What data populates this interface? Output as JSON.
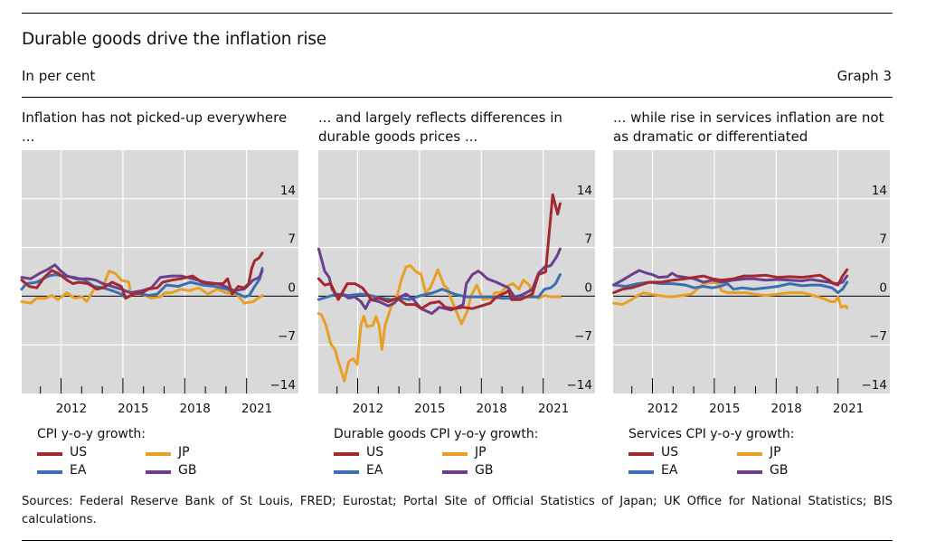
{
  "header": {
    "title": "Durable goods drive the inflation rise",
    "unit": "In per cent",
    "graph_number": "Graph 3"
  },
  "colors": {
    "US": "#a4282e",
    "EA": "#3b6fb1",
    "JP": "#e8a024",
    "GB": "#6c3e8e",
    "plot_bg": "#d9d9d9",
    "grid": "#ffffff"
  },
  "sources": "Sources: Federal Reserve Bank of St Louis, FRED; Eurostat; Portal Site of Official Statistics of Japan; UK Office for National Statistics; BIS calculations.",
  "chart_data": [
    {
      "type": "line",
      "title": "Inflation has not picked-up everywhere ...",
      "xlabel": "",
      "ylabel": "In per cent",
      "xlim": [
        2010.1,
        2023.5
      ],
      "ylim": [
        -14,
        21
      ],
      "yticks": [
        -14,
        -7,
        0,
        7,
        14
      ],
      "ytick_labels": [
        "−14",
        "−7",
        "0",
        "7",
        "14"
      ],
      "xticks_major": [
        2012,
        2015,
        2018,
        2021
      ],
      "xticks_minor": [
        2011,
        2013,
        2014,
        2016,
        2017,
        2019,
        2020
      ],
      "xtick_labels": [
        "2012",
        "2015",
        "2018",
        "2021"
      ],
      "grid": true,
      "legend_title": "CPI y-o-y growth:",
      "legend": [
        "US",
        "JP",
        "EA",
        "GB"
      ],
      "legend_position": "bottom",
      "series": [
        {
          "name": "US",
          "x": [
            2010.09,
            2010.46,
            2010.82,
            2011.19,
            2011.55,
            2011.85,
            2012.29,
            2012.58,
            2012.87,
            2013.31,
            2013.75,
            2014.04,
            2014.48,
            2014.92,
            2015.14,
            2015.5,
            2015.94,
            2016.23,
            2016.67,
            2016.93,
            2017.37,
            2017.81,
            2018.39,
            2018.83,
            2019.27,
            2019.86,
            2020.08,
            2020.3,
            2020.59,
            2020.88,
            2021.1,
            2021.25,
            2021.39,
            2021.61,
            2021.76
          ],
          "y": [
            2.3,
            1.4,
            1.2,
            2.7,
            3.7,
            3.3,
            2.3,
            1.8,
            2.0,
            1.8,
            1.0,
            1.2,
            2.0,
            1.4,
            -0.3,
            0.3,
            0.5,
            1.0,
            1.2,
            2.0,
            2.3,
            2.5,
            2.9,
            2.0,
            1.8,
            1.8,
            2.5,
            0.3,
            1.4,
            1.2,
            1.8,
            4.0,
            5.1,
            5.5,
            6.2
          ]
        },
        {
          "name": "EA",
          "x": [
            2010.09,
            2010.32,
            2010.82,
            2011.4,
            2011.7,
            2012.14,
            2012.65,
            2013.16,
            2013.6,
            2014.04,
            2014.48,
            2014.92,
            2015.14,
            2015.65,
            2016.23,
            2016.67,
            2017.04,
            2017.1,
            2017.68,
            2018.27,
            2018.86,
            2019.45,
            2020.03,
            2020.47,
            2020.91,
            2021.13,
            2021.35,
            2021.64,
            2021.76
          ],
          "y": [
            1.0,
            1.8,
            2.0,
            2.9,
            3.1,
            2.9,
            2.7,
            2.3,
            1.4,
            1.2,
            0.8,
            0.3,
            -0.3,
            0.5,
            0.1,
            0.3,
            1.4,
            1.6,
            1.4,
            2.0,
            1.6,
            1.4,
            1.0,
            0.5,
            -0.1,
            0.1,
            1.2,
            2.5,
            4.0
          ]
        },
        {
          "name": "JP",
          "x": [
            2010.09,
            2010.53,
            2010.82,
            2011.26,
            2011.55,
            2011.85,
            2012.29,
            2012.65,
            2013.02,
            2013.24,
            2013.6,
            2014.04,
            2014.33,
            2014.62,
            2014.92,
            2015.29,
            2015.36,
            2015.94,
            2016.38,
            2016.82,
            2017.04,
            2017.37,
            2017.81,
            2018.24,
            2018.68,
            2019.13,
            2019.56,
            2020.0,
            2020.52,
            2020.88,
            2021.32,
            2021.54,
            2021.76
          ],
          "y": [
            -0.8,
            -1.0,
            -0.3,
            -0.3,
            0.1,
            -0.5,
            0.5,
            -0.3,
            -0.1,
            -0.8,
            1.0,
            1.4,
            3.6,
            3.3,
            2.3,
            2.0,
            0.5,
            0.3,
            -0.3,
            -0.1,
            0.5,
            0.5,
            1.0,
            0.8,
            1.2,
            0.3,
            1.0,
            0.5,
            0.3,
            -1.0,
            -0.8,
            -0.3,
            0.1
          ]
        },
        {
          "name": "GB",
          "x": [
            2010.09,
            2010.53,
            2010.98,
            2011.33,
            2011.7,
            2011.99,
            2012.29,
            2012.73,
            2013.31,
            2013.68,
            2014.04,
            2014.48,
            2014.92,
            2015.36,
            2015.94,
            2016.38,
            2016.82,
            2017.37,
            2017.81,
            2018.39,
            2018.98,
            2019.57,
            2019.96,
            2020.4,
            2020.88,
            2021.32,
            2021.61,
            2021.76
          ],
          "y": [
            2.7,
            2.5,
            3.3,
            3.8,
            4.5,
            3.6,
            2.9,
            2.5,
            2.5,
            2.3,
            1.8,
            1.4,
            1.0,
            0.5,
            0.8,
            1.2,
            2.7,
            2.9,
            2.9,
            2.5,
            2.0,
            1.8,
            1.4,
            0.8,
            1.0,
            2.3,
            2.7,
            3.6
          ]
        }
      ]
    },
    {
      "type": "line",
      "title": "... and largely reflects differences in durable goods prices ...",
      "xlabel": "",
      "ylabel": "In per cent",
      "xlim": [
        2010.1,
        2023.5
      ],
      "ylim": [
        -14,
        21
      ],
      "yticks": [
        -14,
        -7,
        0,
        7,
        14
      ],
      "ytick_labels": [
        "−14",
        "−7",
        "0",
        "7",
        "14"
      ],
      "xticks_major": [
        2012,
        2015,
        2018,
        2021
      ],
      "xticks_minor": [
        2011,
        2013,
        2014,
        2016,
        2017,
        2019,
        2020
      ],
      "xtick_labels": [
        "2012",
        "2015",
        "2018",
        "2021"
      ],
      "grid": true,
      "legend_title": "Durable goods CPI y-o-y growth:",
      "legend": [
        "US",
        "JP",
        "EA",
        "GB"
      ],
      "legend_position": "bottom",
      "series": [
        {
          "name": "US",
          "x": [
            2010.11,
            2010.4,
            2010.69,
            2011.06,
            2011.5,
            2011.87,
            2012.23,
            2012.67,
            2013.04,
            2013.48,
            2013.92,
            2014.35,
            2014.79,
            2015.08,
            2015.52,
            2015.96,
            2016.25,
            2016.69,
            2017.12,
            2017.56,
            2018.0,
            2018.44,
            2018.73,
            2019.17,
            2019.32,
            2019.46,
            2019.9,
            2020.48,
            2020.77,
            2021.12,
            2021.46,
            2021.7,
            2021.82
          ],
          "y": [
            2.5,
            1.6,
            1.8,
            -0.5,
            1.8,
            1.8,
            1.2,
            -0.5,
            -0.3,
            -0.8,
            -0.3,
            -1.2,
            -1.2,
            -1.8,
            -1.0,
            -0.8,
            -1.6,
            -1.8,
            -1.6,
            -1.8,
            -1.4,
            -1.0,
            -0.1,
            0.5,
            0.8,
            -0.5,
            -0.5,
            0.3,
            3.1,
            3.5,
            14.6,
            11.8,
            13.3
          ]
        },
        {
          "name": "EA",
          "x": [
            2010.11,
            2010.55,
            2010.98,
            2011.57,
            2012.16,
            2012.6,
            2013.18,
            2013.62,
            2014.06,
            2014.5,
            2015.08,
            2015.67,
            2016.1,
            2016.54,
            2016.69,
            2017.27,
            2017.86,
            2018.44,
            2019.02,
            2019.61,
            2020.19,
            2020.77,
            2021.07,
            2021.37,
            2021.6,
            2021.82
          ],
          "y": [
            -0.5,
            -0.1,
            0.3,
            0.1,
            0.3,
            0.1,
            -0.3,
            -0.5,
            -0.3,
            -0.5,
            0.1,
            0.5,
            1.0,
            0.5,
            0.3,
            -0.1,
            -0.1,
            -0.1,
            -0.3,
            -0.3,
            -0.1,
            -0.1,
            1.0,
            1.2,
            1.8,
            3.1
          ]
        },
        {
          "name": "JP",
          "x": [
            2010.11,
            2010.25,
            2010.47,
            2010.69,
            2010.91,
            2011.06,
            2011.2,
            2011.35,
            2011.57,
            2011.79,
            2011.98,
            2012.16,
            2012.3,
            2012.45,
            2012.74,
            2012.89,
            2013.04,
            2013.18,
            2013.33,
            2013.62,
            2013.92,
            2014.13,
            2014.35,
            2014.57,
            2014.79,
            2015.08,
            2015.3,
            2015.52,
            2015.74,
            2015.89,
            2016.18,
            2016.38,
            2016.47,
            2016.76,
            2017.04,
            2017.34,
            2017.48,
            2017.78,
            2018.07,
            2018.5,
            2018.65,
            2018.94,
            2019.23,
            2019.53,
            2019.82,
            2020.04,
            2020.33,
            2020.48,
            2020.77,
            2021.07,
            2021.37,
            2021.6,
            2021.82
          ],
          "y": [
            -2.5,
            -2.7,
            -4.2,
            -6.8,
            -7.7,
            -9.4,
            -10.7,
            -12.2,
            -9.4,
            -9.0,
            -9.8,
            -4.2,
            -2.9,
            -4.4,
            -4.2,
            -2.9,
            -4.2,
            -7.7,
            -4.2,
            -1.6,
            0.1,
            2.5,
            4.2,
            4.4,
            3.6,
            3.1,
            0.5,
            1.2,
            2.7,
            3.8,
            1.6,
            1.0,
            0.1,
            -2.0,
            -4.0,
            -2.0,
            -0.1,
            1.6,
            -0.5,
            -0.3,
            0.5,
            0.5,
            1.4,
            1.8,
            1.0,
            2.3,
            1.6,
            0.1,
            -0.3,
            0.1,
            -0.1,
            -0.1,
            -0.1
          ]
        },
        {
          "name": "GB",
          "x": [
            2010.11,
            2010.25,
            2010.4,
            2010.62,
            2010.76,
            2010.98,
            2011.27,
            2011.57,
            2011.86,
            2012.16,
            2012.38,
            2012.6,
            2013.04,
            2013.48,
            2013.77,
            2014.06,
            2014.35,
            2014.65,
            2015.08,
            2015.6,
            2015.96,
            2016.25,
            2016.54,
            2016.83,
            2017.12,
            2017.27,
            2017.56,
            2017.85,
            2018.0,
            2018.29,
            2018.73,
            2019.02,
            2019.31,
            2019.61,
            2019.9,
            2020.19,
            2020.48,
            2020.77,
            2021.07,
            2021.37,
            2021.66,
            2021.82
          ],
          "y": [
            6.8,
            5.3,
            3.6,
            2.7,
            1.0,
            0.1,
            0.3,
            -0.3,
            -0.1,
            -0.8,
            -1.8,
            -0.5,
            -0.8,
            -1.4,
            -1.0,
            -0.1,
            0.3,
            -0.3,
            -1.8,
            -2.5,
            -1.6,
            -1.8,
            -2.0,
            -1.6,
            -1.2,
            1.8,
            3.1,
            3.6,
            3.3,
            2.5,
            2.0,
            1.6,
            1.2,
            -0.1,
            0.1,
            0.5,
            1.0,
            3.3,
            4.2,
            4.4,
            5.7,
            6.8
          ]
        }
      ]
    },
    {
      "type": "line",
      "title": "... while rise in services inflation are not as dramatic or differentiated",
      "xlabel": "",
      "ylabel": "In per cent",
      "xlim": [
        2010.1,
        2023.5
      ],
      "ylim": [
        -14,
        21
      ],
      "yticks": [
        -14,
        -7,
        0,
        7,
        14
      ],
      "ytick_labels": [
        "−14",
        "−7",
        "0",
        "7",
        "14"
      ],
      "xticks_major": [
        2012,
        2015,
        2018,
        2021
      ],
      "xticks_minor": [
        2011,
        2013,
        2014,
        2016,
        2017,
        2019,
        2020
      ],
      "xtick_labels": [
        "2012",
        "2015",
        "2018",
        "2021"
      ],
      "grid": true,
      "legend_title": "Services CPI y-o-y growth:",
      "legend": [
        "US",
        "JP",
        "EA",
        "GB"
      ],
      "legend_position": "bottom",
      "series": [
        {
          "name": "US",
          "x": [
            2010.12,
            2010.55,
            2010.99,
            2011.43,
            2011.87,
            2012.42,
            2013.0,
            2013.59,
            2014.03,
            2014.47,
            2014.91,
            2015.35,
            2015.93,
            2016.44,
            2016.91,
            2017.5,
            2018.08,
            2018.66,
            2019.25,
            2019.54,
            2019.83,
            2020.13,
            2020.56,
            2020.78,
            2021.0,
            2021.22,
            2021.44
          ],
          "y": [
            0.5,
            1.0,
            1.2,
            1.6,
            2.0,
            2.0,
            2.3,
            2.5,
            2.7,
            2.9,
            2.5,
            2.3,
            2.5,
            2.9,
            2.9,
            3.0,
            2.7,
            2.8,
            2.7,
            2.8,
            2.9,
            3.0,
            2.3,
            1.8,
            1.6,
            2.9,
            3.8
          ]
        },
        {
          "name": "EA",
          "x": [
            2010.12,
            2010.71,
            2011.29,
            2011.87,
            2012.42,
            2013.0,
            2013.59,
            2014.03,
            2014.47,
            2014.91,
            2015.27,
            2015.64,
            2015.93,
            2016.37,
            2016.91,
            2017.5,
            2018.08,
            2018.66,
            2019.25,
            2019.69,
            2020.13,
            2020.42,
            2020.71,
            2021.0,
            2021.22,
            2021.44
          ],
          "y": [
            1.6,
            1.4,
            1.8,
            2.0,
            1.8,
            1.8,
            1.6,
            1.2,
            1.4,
            1.2,
            1.4,
            1.8,
            1.0,
            1.2,
            1.0,
            1.2,
            1.4,
            1.8,
            1.5,
            1.6,
            1.6,
            1.4,
            1.2,
            0.5,
            1.0,
            2.0
          ]
        },
        {
          "name": "JP",
          "x": [
            2010.12,
            2010.55,
            2010.99,
            2011.29,
            2011.58,
            2011.87,
            2012.28,
            2012.86,
            2013.45,
            2013.89,
            2014.18,
            2014.47,
            2014.91,
            2015.2,
            2015.35,
            2015.64,
            2016.22,
            2016.55,
            2016.91,
            2017.5,
            2018.08,
            2018.66,
            2019.25,
            2019.69,
            2020.13,
            2020.42,
            2020.64,
            2020.86,
            2021.0,
            2021.15,
            2021.37,
            2021.44
          ],
          "y": [
            -1.0,
            -1.2,
            -0.5,
            0.1,
            0.5,
            0.3,
            0.1,
            -0.1,
            0.1,
            0.3,
            1.0,
            1.8,
            2.0,
            1.8,
            0.8,
            0.5,
            0.5,
            0.5,
            0.3,
            0.1,
            0.3,
            0.5,
            0.5,
            0.2,
            -0.2,
            -0.5,
            -0.8,
            -0.8,
            -0.1,
            -1.6,
            -1.4,
            -1.7
          ]
        },
        {
          "name": "GB",
          "x": [
            2010.12,
            2010.55,
            2010.99,
            2011.36,
            2011.72,
            2012.0,
            2012.3,
            2012.73,
            2012.95,
            2013.17,
            2013.59,
            2014.03,
            2014.47,
            2014.91,
            2015.35,
            2015.93,
            2016.5,
            2016.91,
            2017.5,
            2018.08,
            2018.66,
            2019.25,
            2019.69,
            2020.13,
            2020.56,
            2020.92,
            2021.22,
            2021.44
          ],
          "y": [
            1.6,
            2.3,
            3.1,
            3.7,
            3.3,
            3.1,
            2.7,
            2.8,
            3.3,
            2.9,
            2.7,
            2.5,
            2.0,
            2.3,
            2.0,
            2.3,
            2.5,
            2.5,
            2.3,
            2.4,
            2.3,
            2.2,
            2.4,
            2.2,
            2.0,
            1.8,
            2.0,
            2.9
          ]
        }
      ]
    }
  ]
}
